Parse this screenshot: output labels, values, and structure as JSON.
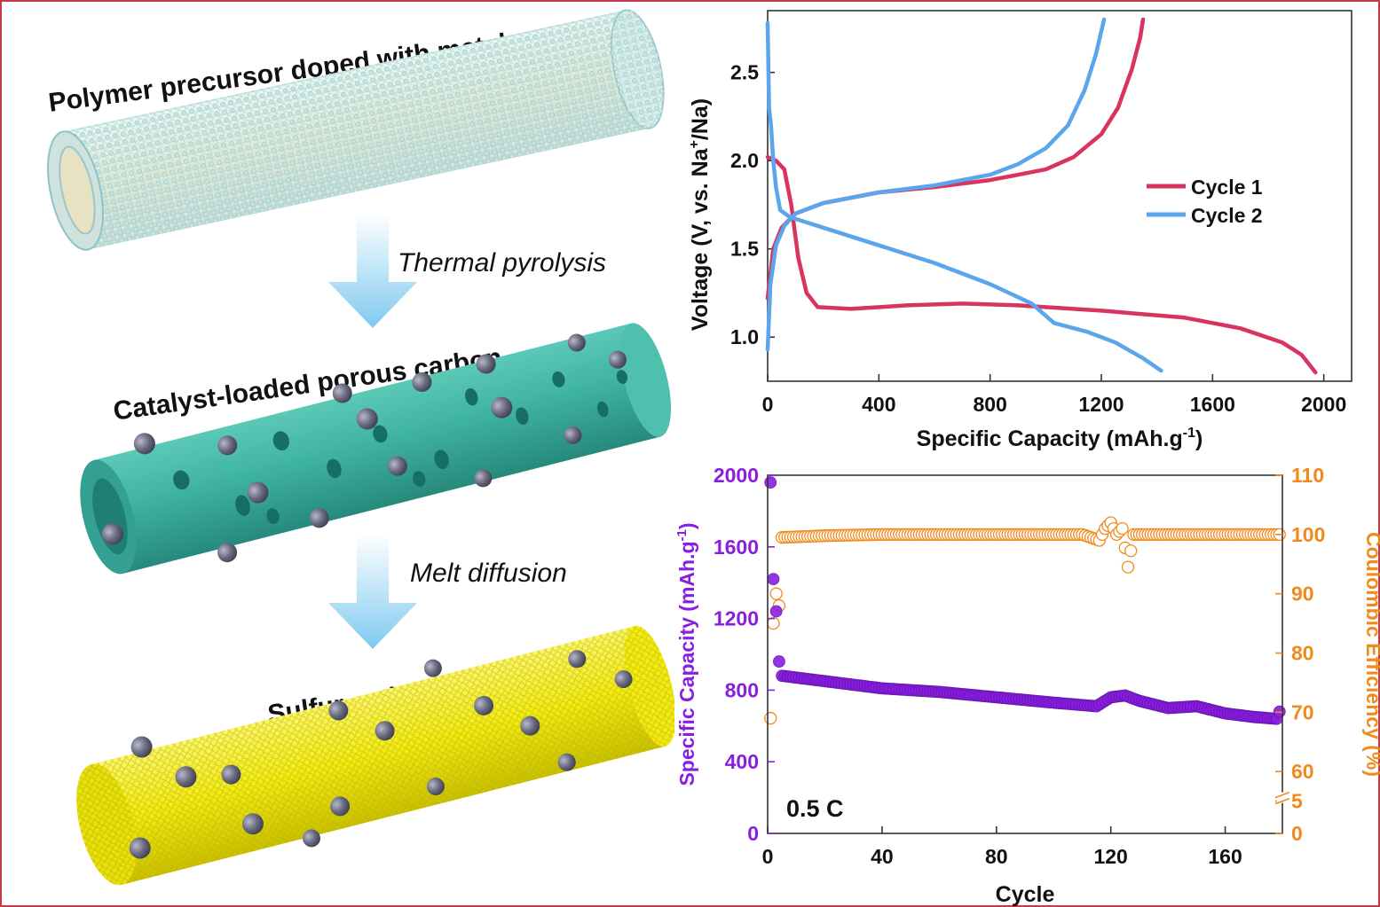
{
  "schematic": {
    "stage1_label": "Polymer precursor doped with metal",
    "step1_label": "Thermal pyrolysis",
    "stage2_label": "Catalyst-loaded porous carbon",
    "step2_label": "Melt diffusion",
    "stage3_label": "Sulfur cathode",
    "colors": {
      "precursor": "#bfe6e8",
      "carbon": "#3fb3a2",
      "catalyst": "#6b6b80",
      "sulfur": "#f4ee1a",
      "arrow": "#7fcaf0"
    }
  },
  "chart_data": [
    {
      "type": "line",
      "xlabel": "Specific Capacity (mAh.g-1)",
      "ylabel": "Voltage (V, vs. Na+/Na)",
      "xlim": [
        0,
        2100
      ],
      "ylim": [
        0.75,
        2.85
      ],
      "xticks": [
        "0",
        "400",
        "800",
        "1200",
        "1600",
        "2000"
      ],
      "yticks": [
        "1.0",
        "1.5",
        "2.0",
        "2.5"
      ],
      "legend_position": "right",
      "series": [
        {
          "name": "Cycle 1",
          "color": "#d8345f",
          "discharge": [
            [
              0,
              2.02
            ],
            [
              30,
              2.0
            ],
            [
              60,
              1.95
            ],
            [
              85,
              1.75
            ],
            [
              110,
              1.45
            ],
            [
              140,
              1.25
            ],
            [
              180,
              1.17
            ],
            [
              300,
              1.16
            ],
            [
              500,
              1.18
            ],
            [
              700,
              1.19
            ],
            [
              900,
              1.18
            ],
            [
              1200,
              1.15
            ],
            [
              1500,
              1.11
            ],
            [
              1700,
              1.05
            ],
            [
              1850,
              0.97
            ],
            [
              1920,
              0.9
            ],
            [
              1970,
              0.8
            ]
          ],
          "charge": [
            [
              0,
              1.22
            ],
            [
              20,
              1.5
            ],
            [
              50,
              1.62
            ],
            [
              100,
              1.7
            ],
            [
              200,
              1.76
            ],
            [
              400,
              1.82
            ],
            [
              600,
              1.85
            ],
            [
              800,
              1.89
            ],
            [
              1000,
              1.95
            ],
            [
              1100,
              2.02
            ],
            [
              1200,
              2.15
            ],
            [
              1260,
              2.3
            ],
            [
              1310,
              2.52
            ],
            [
              1340,
              2.7
            ],
            [
              1350,
              2.8
            ]
          ]
        },
        {
          "name": "Cycle 2",
          "color": "#5aa5eb",
          "discharge": [
            [
              0,
              2.78
            ],
            [
              5,
              2.3
            ],
            [
              12,
              2.2
            ],
            [
              20,
              2.0
            ],
            [
              30,
              1.85
            ],
            [
              45,
              1.72
            ],
            [
              80,
              1.68
            ],
            [
              200,
              1.62
            ],
            [
              400,
              1.52
            ],
            [
              600,
              1.42
            ],
            [
              800,
              1.3
            ],
            [
              950,
              1.19
            ],
            [
              1030,
              1.08
            ],
            [
              1150,
              1.03
            ],
            [
              1250,
              0.97
            ],
            [
              1350,
              0.88
            ],
            [
              1415,
              0.81
            ]
          ],
          "charge": [
            [
              0,
              0.93
            ],
            [
              10,
              1.3
            ],
            [
              30,
              1.52
            ],
            [
              60,
              1.63
            ],
            [
              100,
              1.7
            ],
            [
              200,
              1.76
            ],
            [
              400,
              1.82
            ],
            [
              600,
              1.86
            ],
            [
              800,
              1.92
            ],
            [
              900,
              1.98
            ],
            [
              1000,
              2.07
            ],
            [
              1080,
              2.2
            ],
            [
              1140,
              2.4
            ],
            [
              1180,
              2.6
            ],
            [
              1210,
              2.8
            ]
          ]
        }
      ]
    },
    {
      "type": "scatter",
      "xlabel": "Cycle",
      "ylabel": "Specific Capacity (mAh.g-1)",
      "ylabel_right": "Coulombic Efficiency (%)",
      "annotation": "0.5 C",
      "xlim": [
        0,
        180
      ],
      "ylim": [
        0,
        2000
      ],
      "ylim_right": [
        0,
        110
      ],
      "xticks": [
        "0",
        "40",
        "80",
        "120",
        "160"
      ],
      "yticks": [
        "0",
        "400",
        "800",
        "1200",
        "1600",
        "2000"
      ],
      "yticks_right": [
        "0",
        "5",
        "60",
        "70",
        "80",
        "90",
        "100",
        "110"
      ],
      "right_axis_break": [
        5,
        55
      ],
      "capacity_color": "#8a1ee0",
      "efficiency_color": "#f08a1c",
      "capacity_anchors": [
        [
          1,
          1960
        ],
        [
          2,
          1420
        ],
        [
          3,
          1240
        ],
        [
          4,
          960
        ],
        [
          5,
          880
        ],
        [
          20,
          850
        ],
        [
          40,
          810
        ],
        [
          60,
          790
        ],
        [
          80,
          760
        ],
        [
          100,
          730
        ],
        [
          115,
          710
        ],
        [
          120,
          760
        ],
        [
          125,
          770
        ],
        [
          130,
          740
        ],
        [
          140,
          700
        ],
        [
          150,
          710
        ],
        [
          160,
          670
        ],
        [
          170,
          650
        ],
        [
          178,
          640
        ],
        [
          179,
          680
        ]
      ],
      "efficiency_anchors": [
        [
          1,
          69
        ],
        [
          2,
          85
        ],
        [
          3,
          90
        ],
        [
          4,
          88
        ],
        [
          5,
          99.5
        ],
        [
          20,
          99.8
        ],
        [
          40,
          100
        ],
        [
          80,
          100
        ],
        [
          110,
          100
        ],
        [
          116,
          99
        ],
        [
          118,
          101
        ],
        [
          120,
          102
        ],
        [
          122,
          100
        ],
        [
          124,
          101
        ],
        [
          126,
          94.5
        ],
        [
          128,
          100
        ],
        [
          160,
          100
        ],
        [
          179,
          100
        ]
      ]
    }
  ]
}
